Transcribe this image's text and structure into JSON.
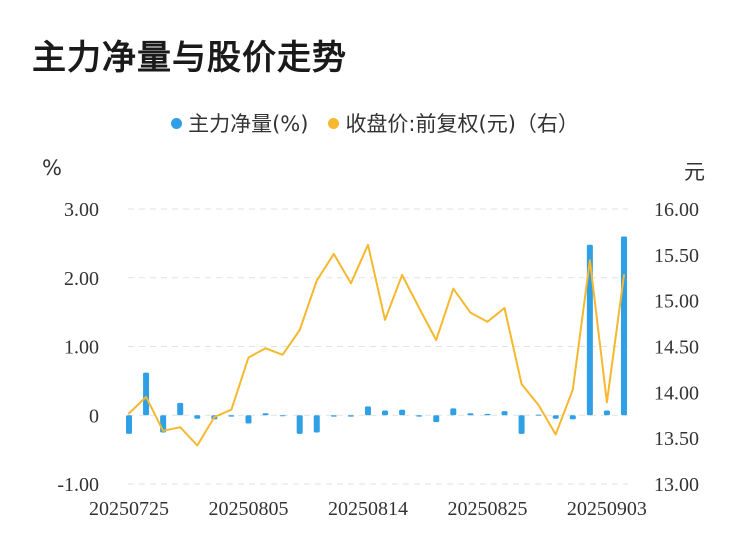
{
  "title": "主力净量与股价走势",
  "colors": {
    "bar": "#2f9fe6",
    "line": "#f5b82e",
    "grid": "#e2e2e2"
  },
  "chart_data": {
    "type": "bar+line",
    "title": "主力净量与股价走势",
    "legend": [
      "主力净量(%)",
      "收盘价:前复权(元)（右）"
    ],
    "legend_placement": "top-center",
    "left_axis": {
      "unit": "%",
      "ylim": [
        -1.0,
        3.0
      ],
      "ticks": [
        "3.00",
        "2.00",
        "1.00",
        "0",
        "-1.00"
      ]
    },
    "right_axis": {
      "unit": "元",
      "ylim": [
        13.0,
        16.0
      ],
      "ticks": [
        "16.00",
        "15.50",
        "15.00",
        "14.50",
        "14.00",
        "13.50",
        "13.00"
      ]
    },
    "x_tick_labels": [
      "20250725",
      "20250805",
      "20250814",
      "20250825",
      "20250903"
    ],
    "x_tick_index": [
      0,
      7,
      14,
      21,
      28
    ],
    "grid": "horizontal-dashed",
    "series": [
      {
        "name": "主力净量(%)",
        "type": "bar",
        "axis": "left",
        "values": [
          -0.27,
          0.62,
          -0.25,
          0.18,
          -0.05,
          -0.06,
          -0.02,
          -0.12,
          0.03,
          0.0,
          -0.27,
          -0.25,
          -0.02,
          -0.02,
          0.13,
          0.07,
          0.08,
          -0.02,
          -0.1,
          0.1,
          0.03,
          0.02,
          0.06,
          -0.27,
          0.01,
          -0.05,
          -0.06,
          2.48,
          0.07,
          2.6
        ]
      },
      {
        "name": "收盘价:前复权(元)（右）",
        "type": "line",
        "axis": "right",
        "values": [
          13.77,
          13.95,
          13.58,
          13.62,
          13.42,
          13.73,
          13.81,
          14.38,
          14.48,
          14.41,
          14.68,
          15.22,
          15.51,
          15.19,
          15.61,
          14.79,
          15.28,
          14.92,
          14.57,
          15.13,
          14.87,
          14.77,
          14.92,
          14.09,
          13.86,
          13.54,
          14.03,
          15.44,
          13.89,
          15.28
        ]
      }
    ]
  }
}
